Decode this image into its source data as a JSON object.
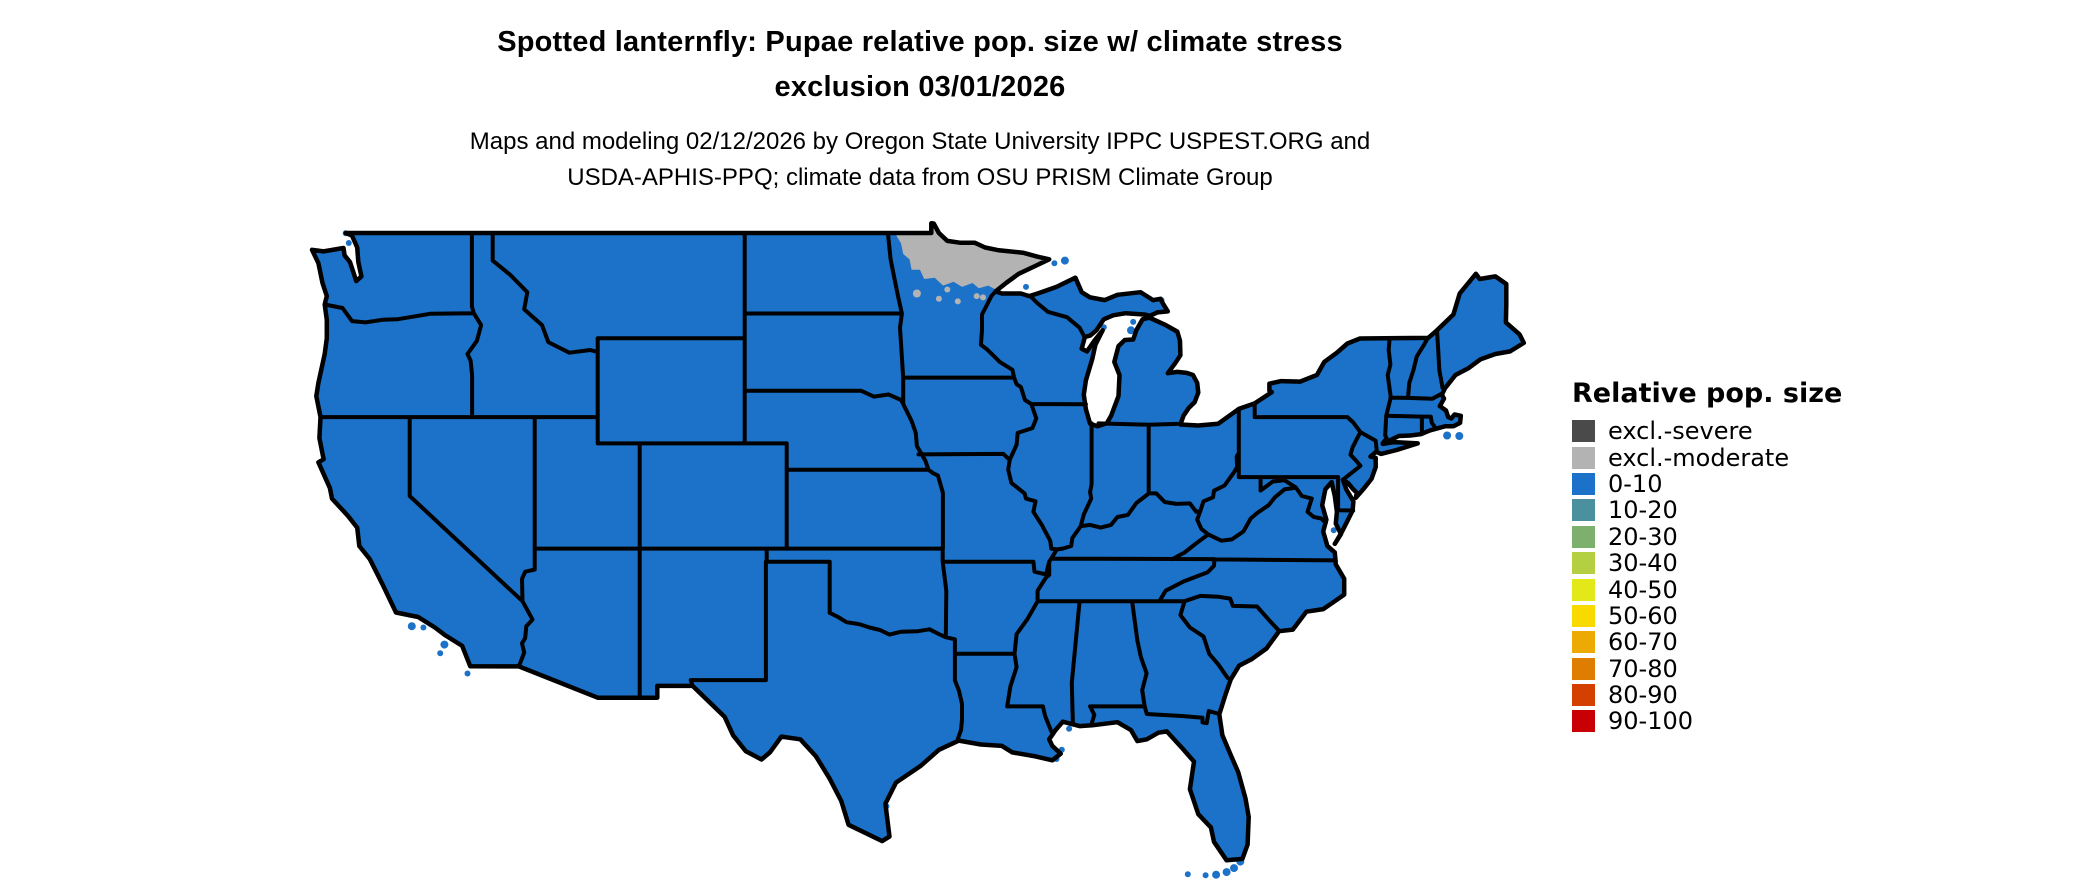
{
  "figure": {
    "title_line1": "Spotted lanternfly: Pupae relative pop. size w/ climate stress",
    "title_line2": "exclusion 03/01/2026",
    "subtitle_line1": "Maps and modeling 02/12/2026 by Oregon State University IPPC USPEST.ORG and",
    "subtitle_line2": "USDA-APHIS-PPQ; climate data from OSU PRISM Climate Group"
  },
  "legend": {
    "title": "Relative pop. size",
    "items": [
      {
        "label": "excl.-severe",
        "color": "#4a4a4a"
      },
      {
        "label": "excl.-moderate",
        "color": "#b3b3b3"
      },
      {
        "label": "0-10",
        "color": "#1b72c8"
      },
      {
        "label": "10-20",
        "color": "#4a909f"
      },
      {
        "label": "20-30",
        "color": "#7cb06c"
      },
      {
        "label": "30-40",
        "color": "#b4cf42"
      },
      {
        "label": "40-50",
        "color": "#e3e918"
      },
      {
        "label": "50-60",
        "color": "#f8da00"
      },
      {
        "label": "60-70",
        "color": "#eda904"
      },
      {
        "label": "70-80",
        "color": "#df7d00"
      },
      {
        "label": "80-90",
        "color": "#d44000"
      },
      {
        "label": "90-100",
        "color": "#c80004"
      }
    ]
  },
  "map": {
    "land_color": "#1b72c8",
    "exclusion_color": "#b3b3b3",
    "border_color": "#000000",
    "water_color": "#ffffff",
    "dominant_class": "0-10",
    "exclusion_class_shown": "excl.-moderate",
    "exclusion_region": "northern Minnesota"
  }
}
